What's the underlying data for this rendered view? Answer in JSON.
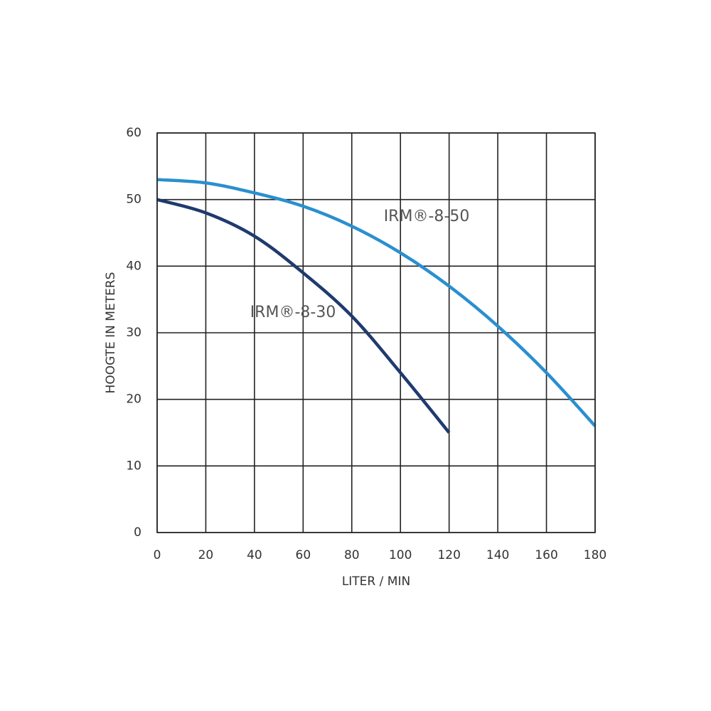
{
  "chart_data": {
    "type": "line",
    "x": [
      0,
      20,
      40,
      60,
      80,
      100,
      120,
      140,
      160,
      180
    ],
    "series": [
      {
        "name": "IRM®-8-30",
        "color": "#1f3a6e",
        "values": [
          50,
          48,
          44.5,
          39,
          32.5,
          24,
          15,
          null,
          null,
          null
        ]
      },
      {
        "name": "IRM®-8-50",
        "color": "#2a8fd0",
        "values": [
          53,
          52.5,
          51,
          49,
          46,
          42,
          37,
          31,
          24,
          16
        ]
      }
    ],
    "xlabel": "LITER / MIN",
    "ylabel": "HOOGTE IN METERS",
    "xlim": [
      0,
      180
    ],
    "ylim": [
      0,
      60
    ],
    "xticks": [
      0,
      20,
      40,
      60,
      80,
      100,
      120,
      140,
      160,
      180
    ],
    "yticks": [
      0,
      10,
      20,
      30,
      40,
      50,
      60
    ],
    "grid": true
  }
}
